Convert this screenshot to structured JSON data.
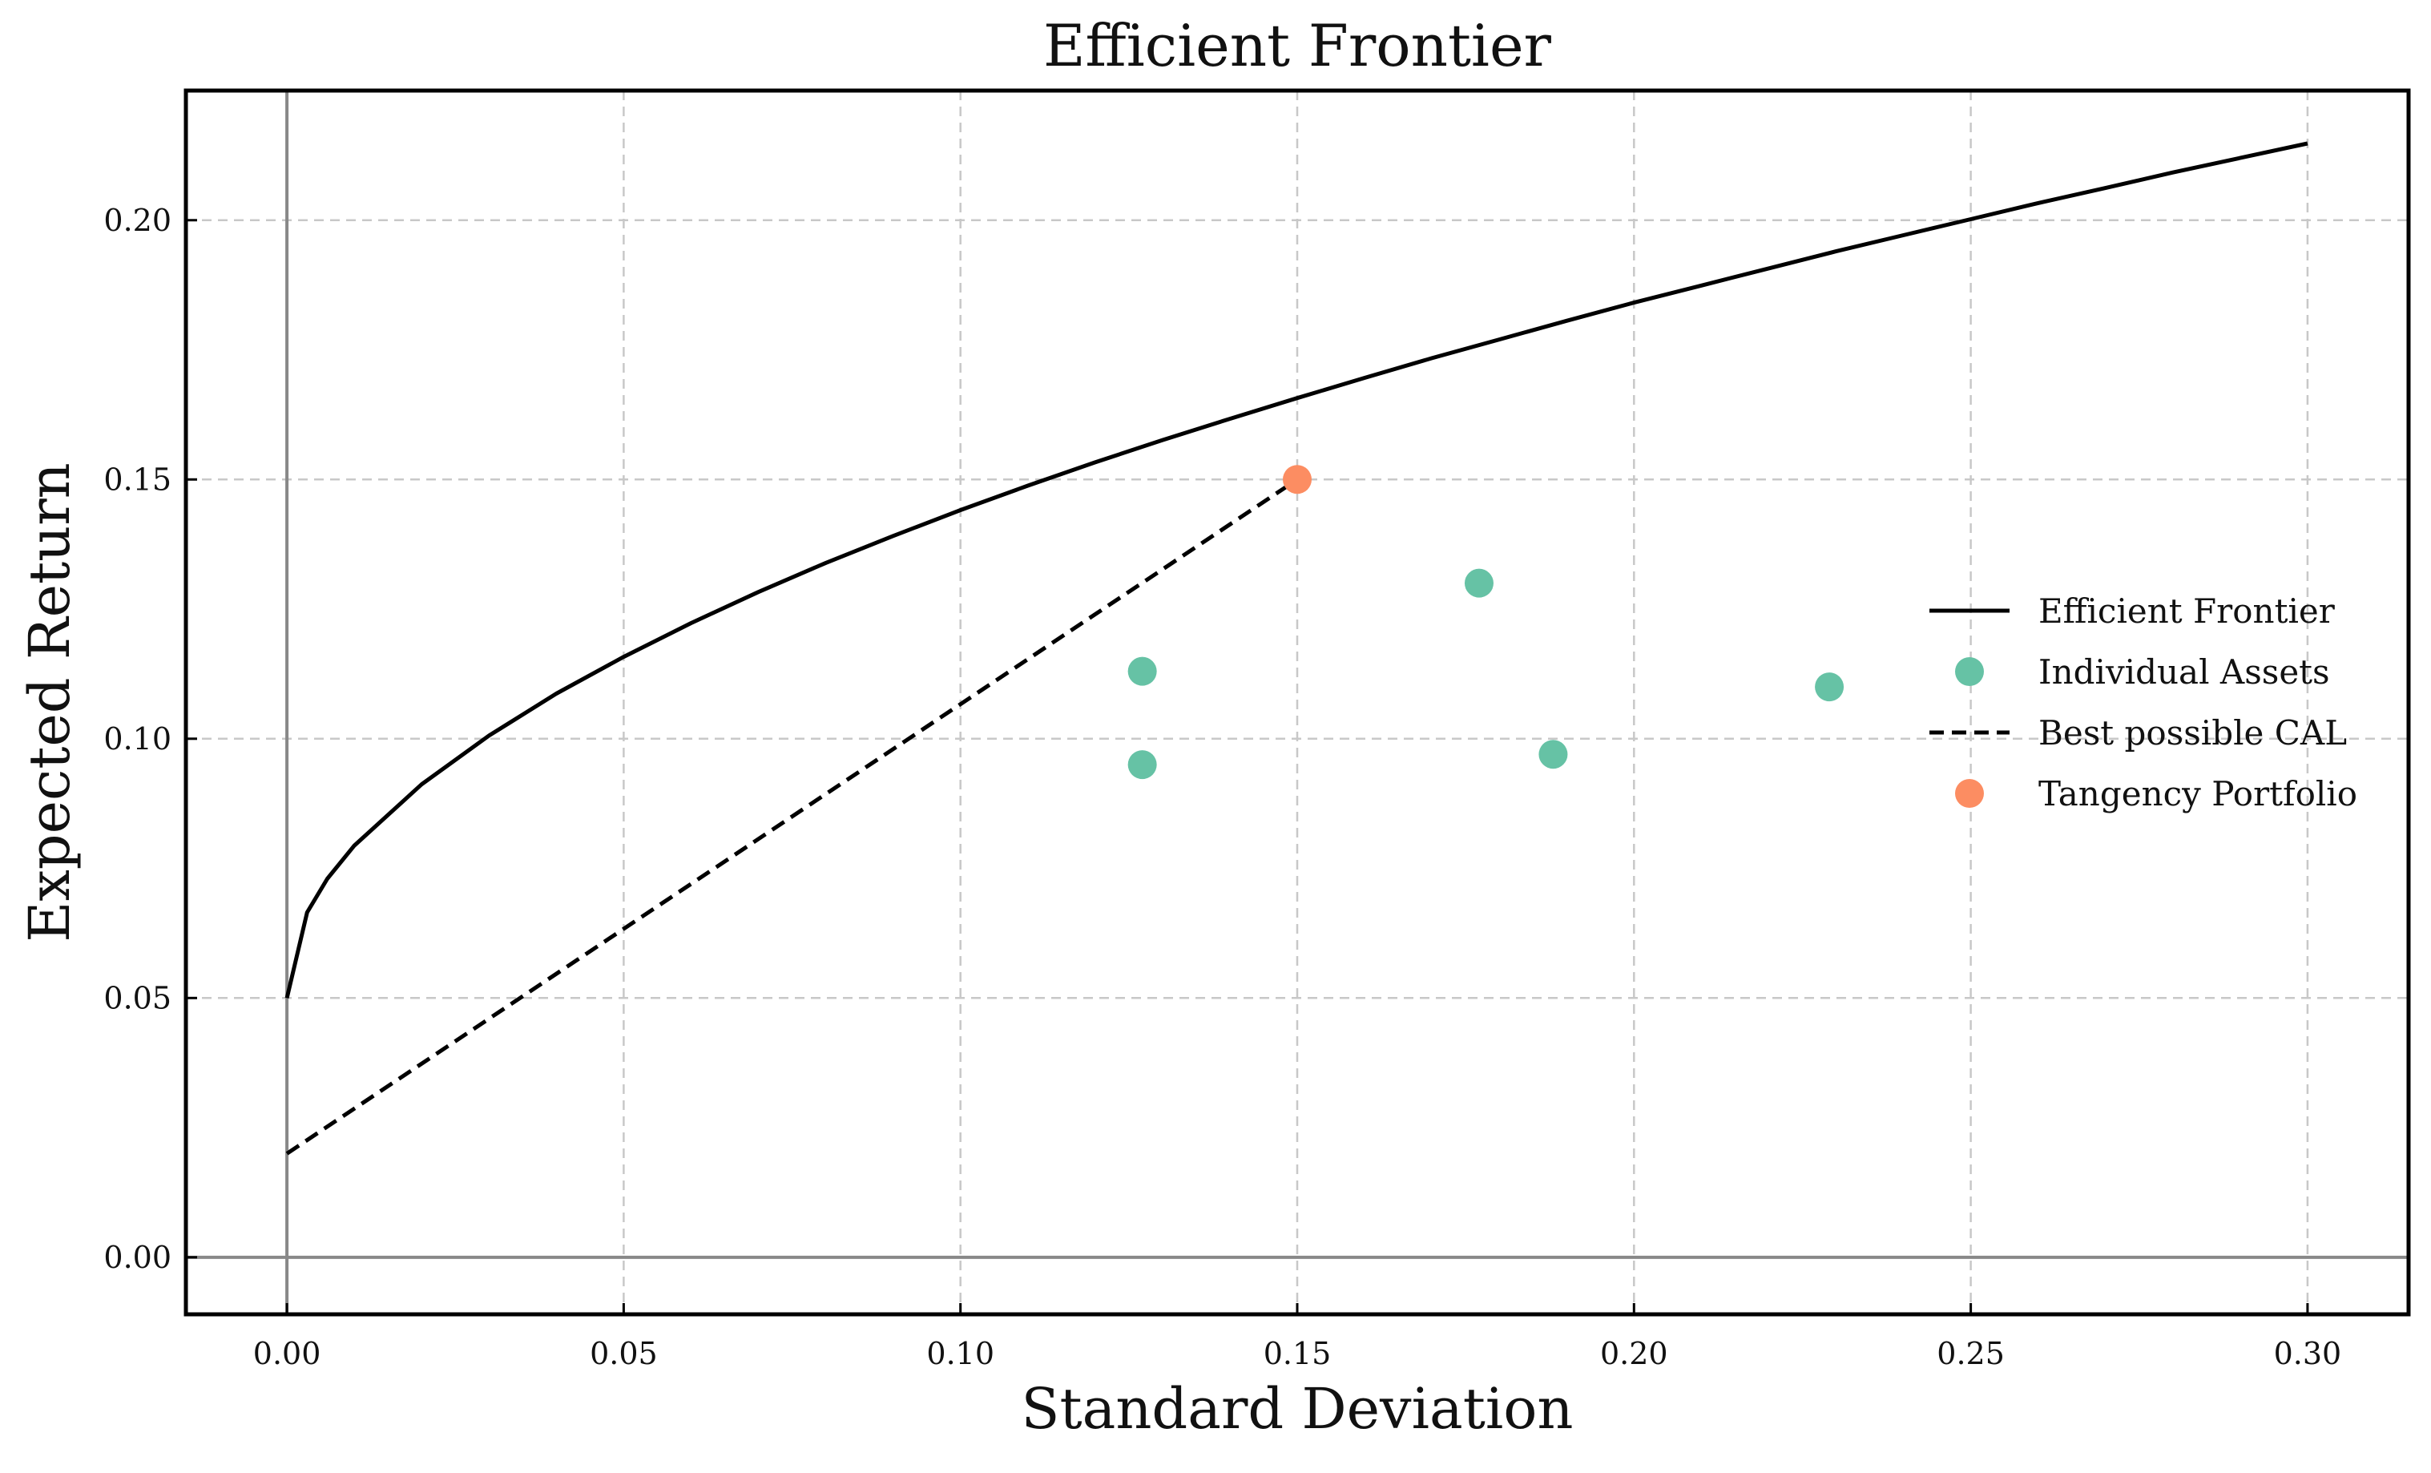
{
  "chart_data": {
    "type": "line",
    "title": "Efficient Frontier",
    "xlabel": "Standard Deviation",
    "ylabel": "Expected Return",
    "xlim": [
      -0.015,
      0.315
    ],
    "ylim": [
      -0.011,
      0.225
    ],
    "x_ticks": [
      0.0,
      0.05,
      0.1,
      0.15,
      0.2,
      0.25,
      0.3
    ],
    "x_tick_labels": [
      "0.00",
      "0.05",
      "0.10",
      "0.15",
      "0.20",
      "0.25",
      "0.30"
    ],
    "y_ticks": [
      0.0,
      0.05,
      0.1,
      0.15,
      0.2
    ],
    "y_tick_labels": [
      "0.00",
      "0.05",
      "0.10",
      "0.15",
      "0.20"
    ],
    "grid": true,
    "legend_position": "right",
    "series": [
      {
        "name": "Efficient Frontier",
        "kind": "line",
        "style": "solid",
        "color": "#000000",
        "x": [
          0.0,
          0.003,
          0.006,
          0.01,
          0.02,
          0.03,
          0.04,
          0.05,
          0.06,
          0.07,
          0.08,
          0.09,
          0.1,
          0.11,
          0.12,
          0.13,
          0.14,
          0.15,
          0.16,
          0.17,
          0.18,
          0.19,
          0.2,
          0.21,
          0.22,
          0.23,
          0.24,
          0.25,
          0.26,
          0.27,
          0.28,
          0.29,
          0.3
        ],
        "y": [
          0.05,
          0.0665,
          0.073,
          0.0794,
          0.0912,
          0.1006,
          0.1087,
          0.1158,
          0.1223,
          0.1283,
          0.1339,
          0.1391,
          0.1441,
          0.1488,
          0.1533,
          0.1576,
          0.1617,
          0.1657,
          0.1696,
          0.1734,
          0.177,
          0.1806,
          0.1841,
          0.1874,
          0.1907,
          0.194,
          0.1971,
          0.2002,
          0.2033,
          0.2062,
          0.2092,
          0.212,
          0.2148
        ]
      },
      {
        "name": "Individual Assets",
        "kind": "scatter",
        "color": "#66c2a5",
        "x": [
          0.127,
          0.127,
          0.177,
          0.188,
          0.229
        ],
        "y": [
          0.113,
          0.095,
          0.13,
          0.097,
          0.11
        ]
      },
      {
        "name": "Best possible CAL",
        "kind": "line",
        "style": "dashed",
        "color": "#000000",
        "x": [
          0.0,
          0.15
        ],
        "y": [
          0.02,
          0.15
        ]
      },
      {
        "name": "Tangency Portfolio",
        "kind": "scatter",
        "color": "#fc8d62",
        "x": [
          0.15
        ],
        "y": [
          0.15
        ]
      }
    ]
  }
}
